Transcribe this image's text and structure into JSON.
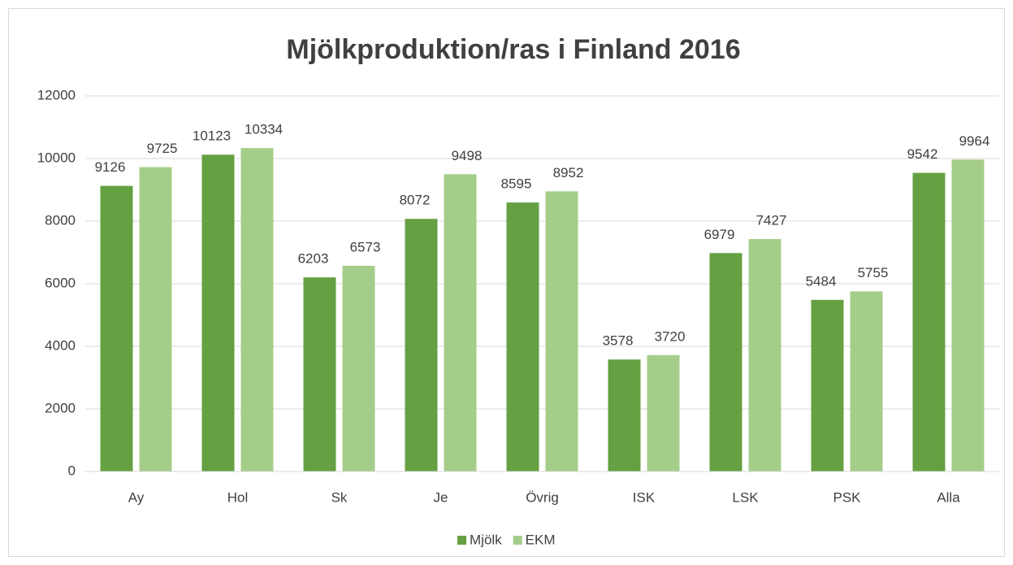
{
  "chart_data": {
    "type": "bar",
    "title": "Mjölkproduktion/ras i Finland 2016",
    "categories": [
      "Ay",
      "Hol",
      "Sk",
      "Je",
      "Övrig",
      "ISK",
      "LSK",
      "PSK",
      "Alla"
    ],
    "series": [
      {
        "name": "Mjölk",
        "color": "#65a042",
        "values": [
          9126,
          10123,
          6203,
          8072,
          8595,
          3578,
          6979,
          5484,
          9542
        ]
      },
      {
        "name": "EKM",
        "color": "#a5cd8a",
        "values": [
          9725,
          10334,
          6573,
          9498,
          8952,
          3720,
          7427,
          5755,
          9964
        ]
      }
    ],
    "ylim": [
      0,
      12000
    ],
    "yticks": [
      0,
      2000,
      4000,
      6000,
      8000,
      10000,
      12000
    ],
    "grid": true,
    "legend": "bottom"
  }
}
